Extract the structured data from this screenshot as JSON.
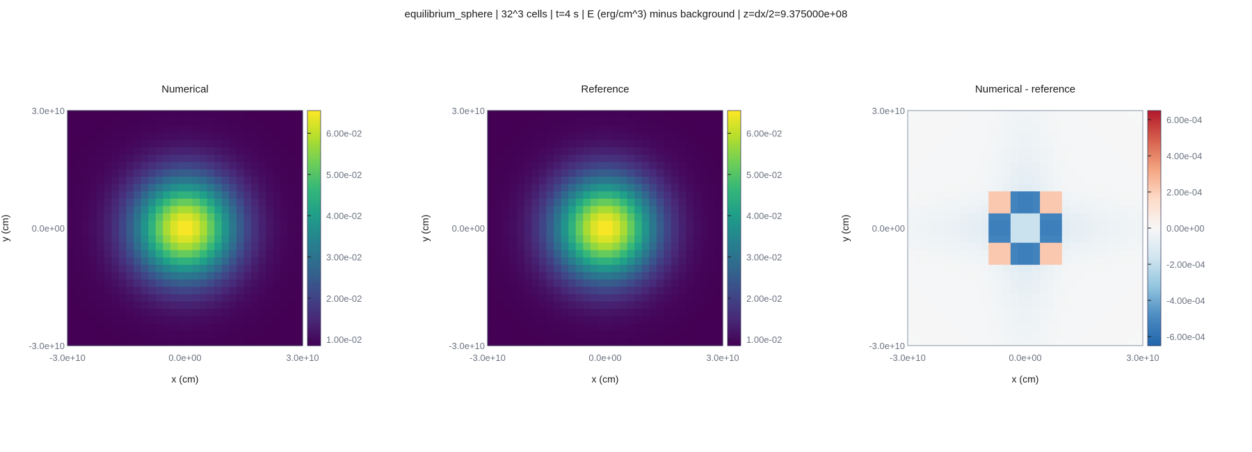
{
  "figure": {
    "title": "equilibrium_sphere | 32^3 cells | t=4 s | E (erg/cm^3) minus background | z=dx/2=9.375000e+08"
  },
  "chart_data": [
    {
      "type": "heatmap",
      "title": "Numerical",
      "xlabel": "x (cm)",
      "ylabel": "y (cm)",
      "xlim": [
        -30000000000,
        30000000000
      ],
      "ylim": [
        -30000000000,
        30000000000
      ],
      "grid_cells": 32,
      "xticks": [
        "-3.0e+10",
        "0.0e+00",
        "3.0e+10"
      ],
      "yticks": [
        "3.0e+10",
        "0.0e+00",
        "-3.0e+10"
      ],
      "colormap": "viridis",
      "colorbar_range": [
        0.0085,
        0.0655
      ],
      "colorbar_ticks": [
        {
          "value": 0.06,
          "label": "6.00e-02"
        },
        {
          "value": 0.05,
          "label": "5.00e-02"
        },
        {
          "value": 0.04,
          "label": "4.00e-02"
        },
        {
          "value": 0.03,
          "label": "3.00e-02"
        },
        {
          "value": 0.02,
          "label": "2.00e-02"
        },
        {
          "value": 0.01,
          "label": "1.00e-02"
        }
      ],
      "field": {
        "model": "gaussian",
        "center": [
          0,
          0
        ],
        "peak": 0.0655,
        "floor": 0.0085,
        "sigma": 9000000000
      }
    },
    {
      "type": "heatmap",
      "title": "Reference",
      "xlabel": "x (cm)",
      "ylabel": "y (cm)",
      "xlim": [
        -30000000000,
        30000000000
      ],
      "ylim": [
        -30000000000,
        30000000000
      ],
      "grid_cells": 32,
      "xticks": [
        "-3.0e+10",
        "0.0e+00",
        "3.0e+10"
      ],
      "yticks": [
        "3.0e+10",
        "0.0e+00",
        "-3.0e+10"
      ],
      "colormap": "viridis",
      "colorbar_range": [
        0.0085,
        0.0655
      ],
      "colorbar_ticks": [
        {
          "value": 0.06,
          "label": "6.00e-02"
        },
        {
          "value": 0.05,
          "label": "5.00e-02"
        },
        {
          "value": 0.04,
          "label": "4.00e-02"
        },
        {
          "value": 0.03,
          "label": "3.00e-02"
        },
        {
          "value": 0.02,
          "label": "2.00e-02"
        },
        {
          "value": 0.01,
          "label": "1.00e-02"
        }
      ],
      "field": {
        "model": "gaussian",
        "center": [
          0,
          0
        ],
        "peak": 0.0655,
        "floor": 0.0085,
        "sigma": 9000000000
      }
    },
    {
      "type": "heatmap",
      "title": "Numerical - reference",
      "xlabel": "x (cm)",
      "ylabel": "y (cm)",
      "xlim": [
        -30000000000,
        30000000000
      ],
      "ylim": [
        -30000000000,
        30000000000
      ],
      "grid_cells": 32,
      "xticks": [
        "-3.0e+10",
        "0.0e+00",
        "3.0e+10"
      ],
      "yticks": [
        "3.0e+10",
        "0.0e+00",
        "-3.0e+10"
      ],
      "colormap": "diverging-blue-red",
      "colorbar_range": [
        -0.00065,
        0.00065
      ],
      "colorbar_ticks": [
        {
          "value": 0.0006,
          "label": "6.00e-04"
        },
        {
          "value": 0.0004,
          "label": "4.00e-04"
        },
        {
          "value": 0.0002,
          "label": "2.00e-04"
        },
        {
          "value": 0,
          "label": "0.00e+00"
        },
        {
          "value": -0.0002,
          "label": "-2.00e-04"
        },
        {
          "value": -0.0004,
          "label": "-4.00e-04"
        },
        {
          "value": -0.0006,
          "label": "-6.00e-04"
        }
      ],
      "field": {
        "model": "residual-cross",
        "center": [
          0,
          0
        ],
        "min": -0.00065,
        "max": 0.00025
      }
    }
  ],
  "colors": {
    "viridis": [
      "#440154",
      "#482878",
      "#3e4989",
      "#31688e",
      "#26828e",
      "#1f9e89",
      "#35b779",
      "#6ece58",
      "#b5de2b",
      "#fde725"
    ],
    "diverging": [
      "#2166ac",
      "#4b8bc2",
      "#92c5de",
      "#d1e5f0",
      "#f7f7f7",
      "#fddbc7",
      "#f4a582",
      "#d6604d",
      "#b2182b"
    ],
    "axis_frame": "#1a1a1a",
    "tick_text": "#6b7280"
  }
}
